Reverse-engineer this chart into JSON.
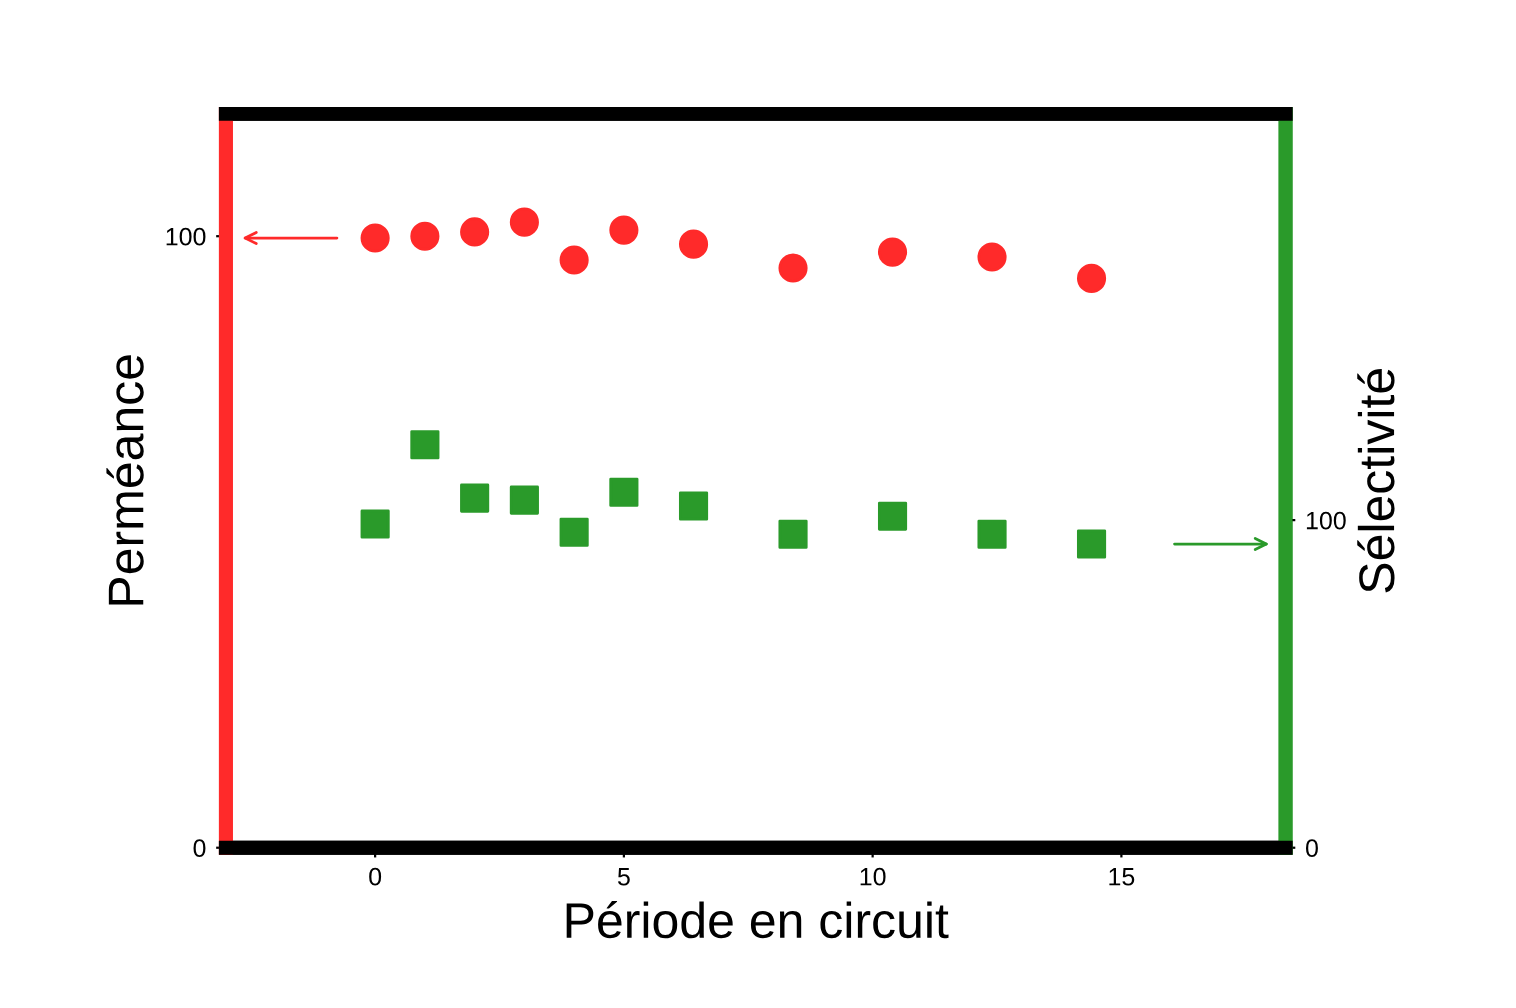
{
  "chart_data": {
    "type": "scatter",
    "xlabel": "Période en circuit",
    "ylabel": "Perméance",
    "y2label": "Sélectivité",
    "xlim": [
      -3,
      18.3
    ],
    "xticks": [
      0,
      5,
      10,
      15
    ],
    "ylim": [
      0,
      120
    ],
    "yticks": [
      0,
      100
    ],
    "y2lim": [
      0,
      224
    ],
    "y2ticks": [
      0,
      100
    ],
    "grid": false,
    "legend": false,
    "series": [
      {
        "color": "#ff2a2a",
        "marker": "circle",
        "x": [
          0,
          1,
          2,
          3,
          4,
          5,
          6.4,
          8.4,
          10.4,
          12.4,
          14.4
        ],
        "values": [
          99.7,
          100,
          100.7,
          102.3,
          96.1,
          101,
          98.7,
          94.8,
          97.4,
          96.6,
          93.1
        ]
      },
      {
        "color": "#2a9a2a",
        "marker": "square",
        "axis": "y2",
        "x": [
          0,
          1,
          2,
          3,
          4,
          5,
          6.4,
          8.4,
          10.4,
          12.4,
          14.4
        ],
        "values": [
          98.8,
          123,
          106.7,
          106.1,
          96.3,
          108.5,
          104.3,
          95.7,
          101.2,
          95.7,
          92.7
        ]
      }
    ]
  }
}
